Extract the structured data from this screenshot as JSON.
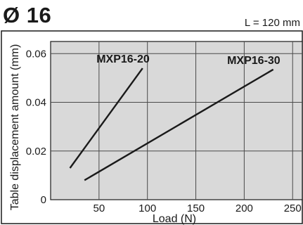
{
  "header": {
    "title": "Ø 16",
    "condition": "L = 120 mm"
  },
  "chart_data": {
    "type": "line",
    "title": "Ø 16",
    "subtitle": "L = 120 mm",
    "xlabel": "Load (N)",
    "ylabel": "Table displacement amount (mm)",
    "xlim": [
      0,
      260
    ],
    "ylim": [
      0,
      0.065
    ],
    "xticks": [
      50,
      100,
      150,
      200,
      250
    ],
    "yticks": [
      0,
      0.02,
      0.04,
      0.06
    ],
    "ytick_labels": [
      "0",
      "0.02",
      "0.04",
      "0.06"
    ],
    "grid": true,
    "series": [
      {
        "name": "MXP16-20",
        "x": [
          20,
          95
        ],
        "y": [
          0.013,
          0.054
        ]
      },
      {
        "name": "MXP16-30",
        "x": [
          35,
          230
        ],
        "y": [
          0.008,
          0.0535
        ]
      }
    ],
    "colors": {
      "background": "#d9d9d9",
      "grid": "#4a4a4a",
      "line": "#1a1a1a"
    }
  }
}
